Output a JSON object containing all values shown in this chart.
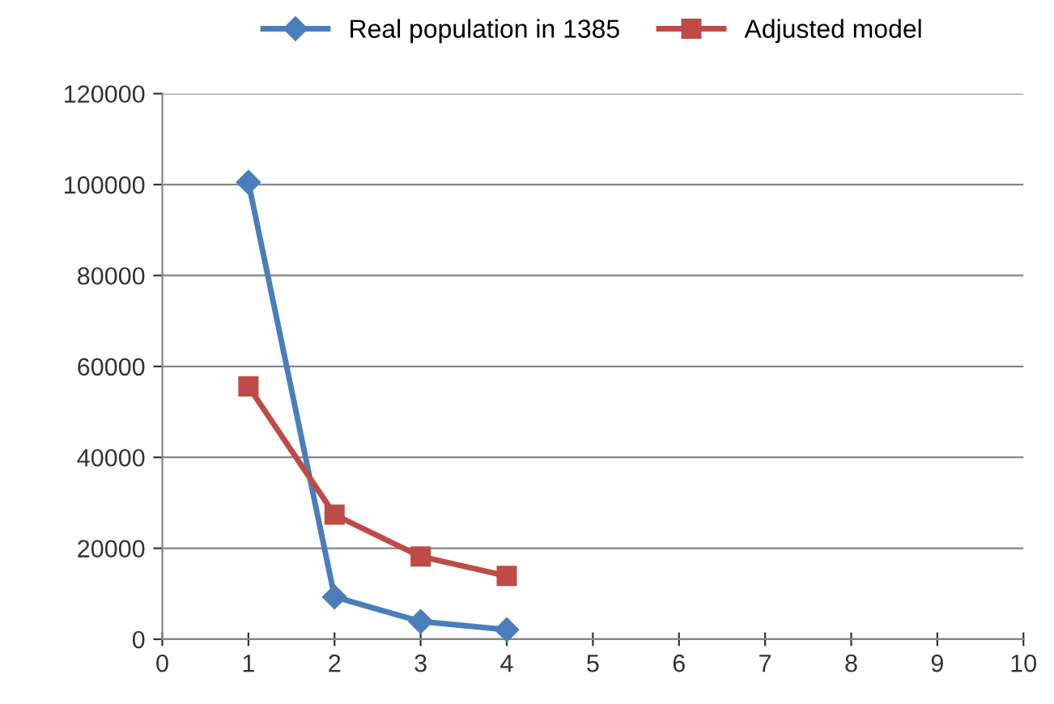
{
  "chart_data": {
    "type": "line",
    "x": [
      1,
      2,
      3,
      4
    ],
    "series": [
      {
        "name": "Real population in 1385",
        "color": "#4a7ebb",
        "values": [
          100500,
          9300,
          3900,
          2100
        ],
        "marker": "diamond"
      },
      {
        "name": "Adjusted model",
        "color": "#be4b48",
        "values": [
          55600,
          27400,
          18200,
          13900
        ],
        "marker": "square"
      }
    ],
    "xlim": [
      0,
      10
    ],
    "xticks": [
      0,
      1,
      2,
      3,
      4,
      5,
      6,
      7,
      8,
      9,
      10
    ],
    "ylim": [
      0,
      120000
    ],
    "yticks": [
      0,
      20000,
      40000,
      60000,
      80000,
      100000,
      120000
    ],
    "grid": "y",
    "legend": "top",
    "line_style": "solid"
  }
}
